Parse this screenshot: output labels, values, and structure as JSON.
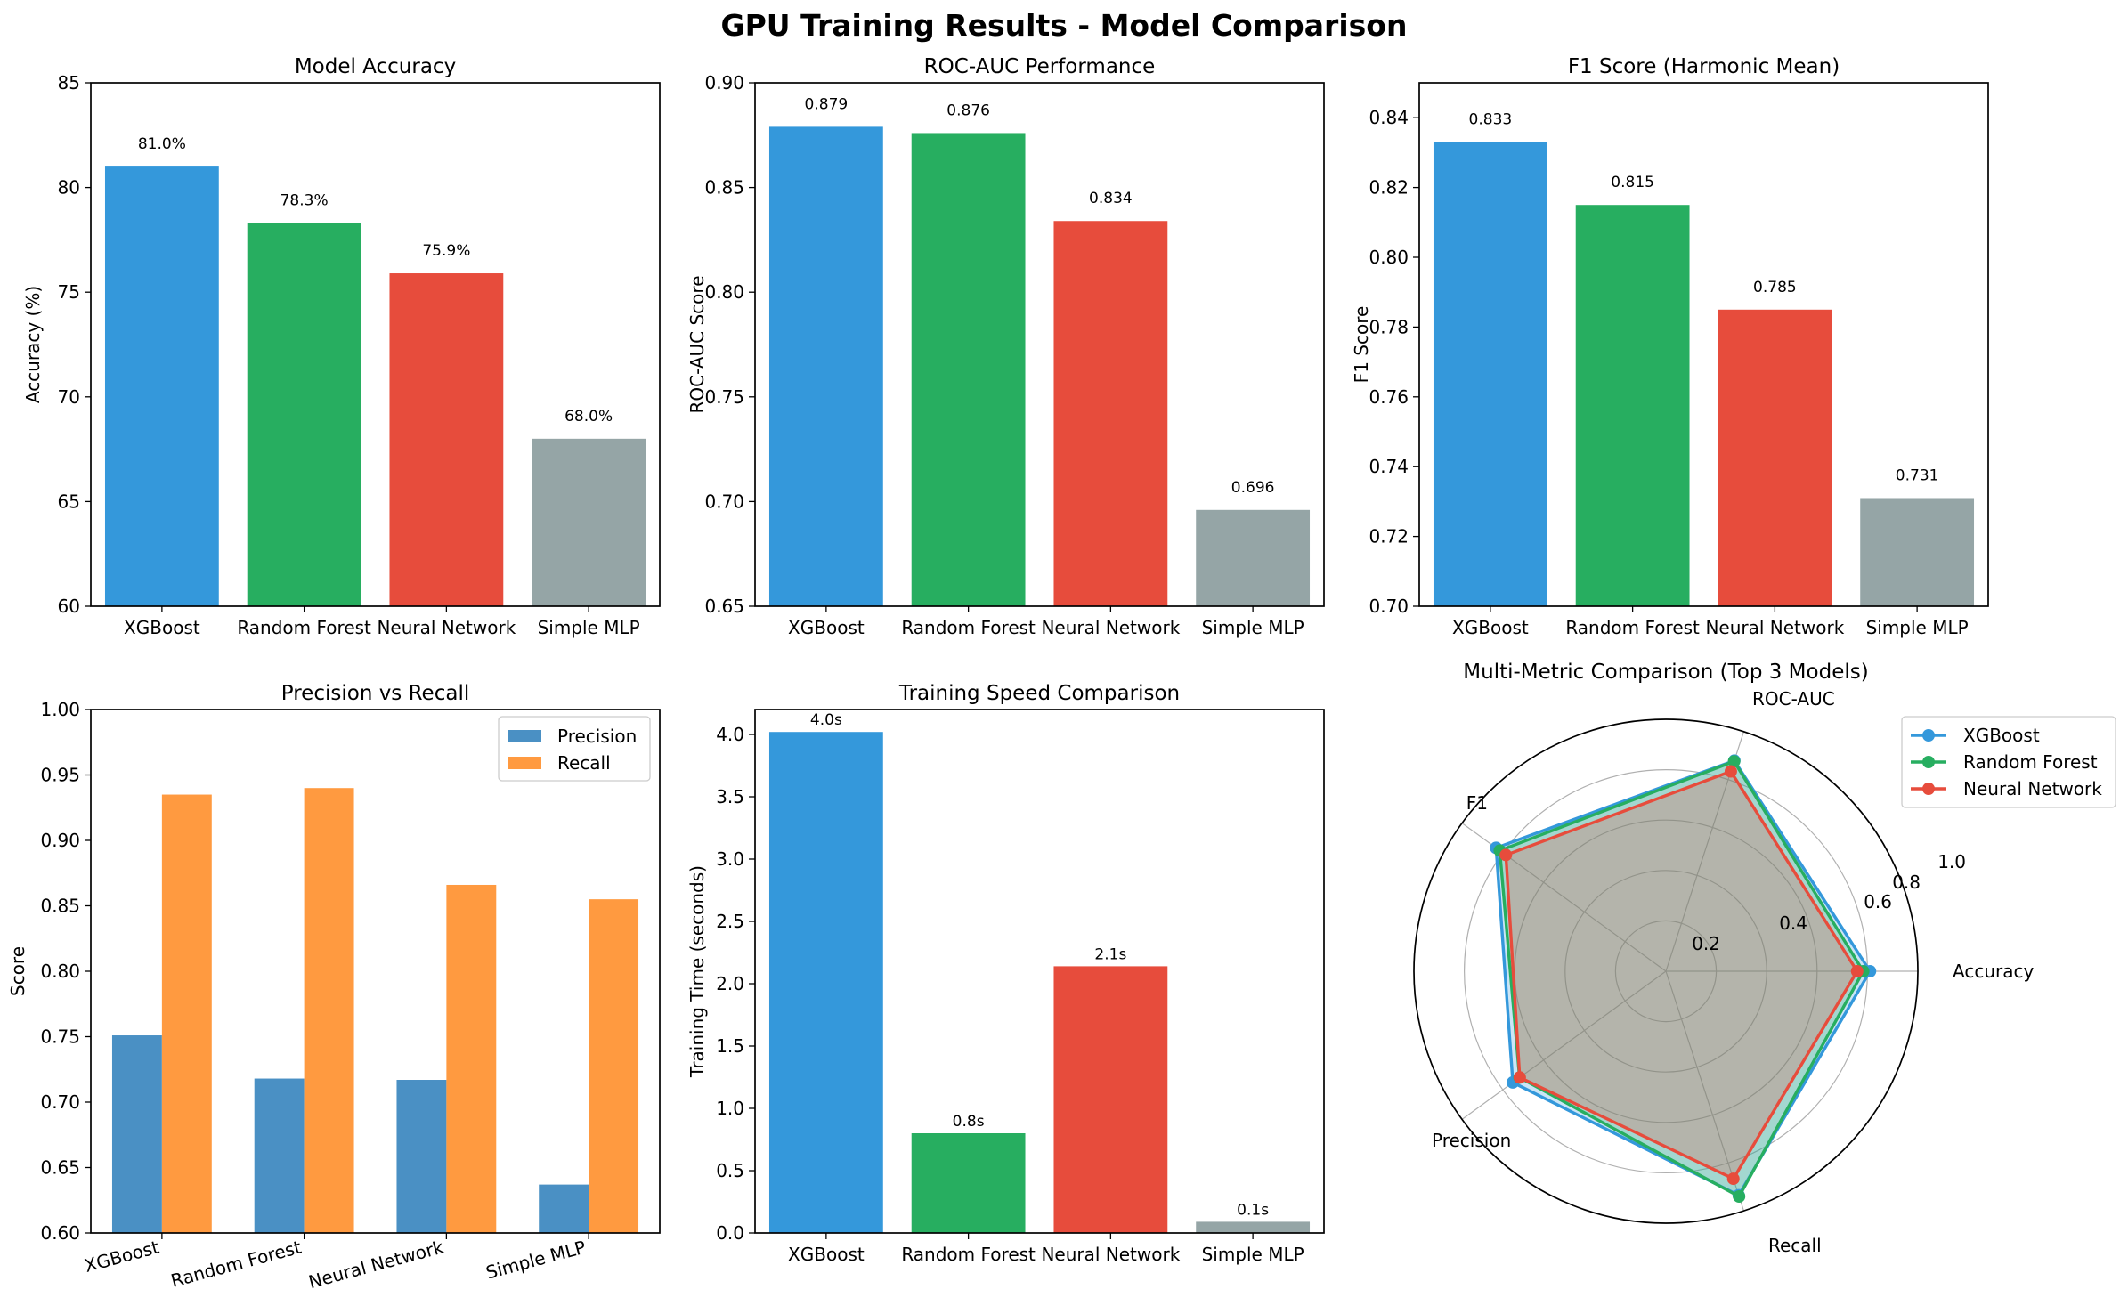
{
  "figure": {
    "title": "GPU Training Results - Model Comparison"
  },
  "chart_data": [
    {
      "id": "accuracy",
      "type": "bar",
      "title": "Model Accuracy",
      "xlabel": "",
      "ylabel": "Accuracy (%)",
      "ylim": [
        60,
        85
      ],
      "yticks": [
        60,
        65,
        70,
        75,
        80,
        85
      ],
      "categories": [
        "XGBoost",
        "Random Forest",
        "Neural Network",
        "Simple MLP"
      ],
      "values": [
        81.0,
        78.3,
        75.9,
        68.0
      ],
      "data_labels": [
        "81.0%",
        "78.3%",
        "75.9%",
        "68.0%"
      ],
      "colors": [
        "#3498db",
        "#27ae60",
        "#e74c3c",
        "#95a5a6"
      ],
      "grid": false
    },
    {
      "id": "roc_auc",
      "type": "bar",
      "title": "ROC-AUC Performance",
      "xlabel": "",
      "ylabel": "ROC-AUC Score",
      "ylim": [
        0.65,
        0.9
      ],
      "yticks": [
        "0.65",
        "0.70",
        "0.75",
        "0.80",
        "0.85",
        "0.90"
      ],
      "categories": [
        "XGBoost",
        "Random Forest",
        "Neural Network",
        "Simple MLP"
      ],
      "values": [
        0.879,
        0.876,
        0.834,
        0.696
      ],
      "data_labels": [
        "0.879",
        "0.876",
        "0.834",
        "0.696"
      ],
      "colors": [
        "#3498db",
        "#27ae60",
        "#e74c3c",
        "#95a5a6"
      ],
      "grid": false
    },
    {
      "id": "f1",
      "type": "bar",
      "title": "F1 Score (Harmonic Mean)",
      "xlabel": "",
      "ylabel": "F1 Score",
      "ylim": [
        0.7,
        0.85
      ],
      "yticks": [
        "0.70",
        "0.72",
        "0.74",
        "0.76",
        "0.78",
        "0.80",
        "0.82",
        "0.84"
      ],
      "categories": [
        "XGBoost",
        "Random Forest",
        "Neural Network",
        "Simple MLP"
      ],
      "values": [
        0.833,
        0.815,
        0.785,
        0.731
      ],
      "data_labels": [
        "0.833",
        "0.815",
        "0.785",
        "0.731"
      ],
      "colors": [
        "#3498db",
        "#27ae60",
        "#e74c3c",
        "#95a5a6"
      ],
      "grid": false
    },
    {
      "id": "prec_recall",
      "type": "bar",
      "title": "Precision vs Recall",
      "xlabel": "",
      "ylabel": "Score",
      "ylim": [
        0.6,
        1.0
      ],
      "yticks": [
        "0.60",
        "0.65",
        "0.70",
        "0.75",
        "0.80",
        "0.85",
        "0.90",
        "0.95",
        "1.00"
      ],
      "categories": [
        "XGBoost",
        "Random Forest",
        "Neural Network",
        "Simple MLP"
      ],
      "series": [
        {
          "name": "Precision",
          "values": [
            0.751,
            0.718,
            0.717,
            0.637
          ],
          "color": "#4a90c4"
        },
        {
          "name": "Recall",
          "values": [
            0.935,
            0.94,
            0.866,
            0.855
          ],
          "color": "#ff9a40"
        }
      ],
      "legend": "upper right",
      "grid": false
    },
    {
      "id": "speed",
      "type": "bar",
      "title": "Training Speed Comparison",
      "xlabel": "",
      "ylabel": "Training Time (seconds)",
      "ylim": [
        0,
        4.2
      ],
      "yticks": [
        "0.0",
        "0.5",
        "1.0",
        "1.5",
        "2.0",
        "2.5",
        "3.0",
        "3.5",
        "4.0"
      ],
      "categories": [
        "XGBoost",
        "Random Forest",
        "Neural Network",
        "Simple MLP"
      ],
      "values": [
        4.02,
        0.8,
        2.14,
        0.09
      ],
      "data_labels": [
        "4.0s",
        "0.8s",
        "2.1s",
        "0.1s"
      ],
      "colors": [
        "#3498db",
        "#27ae60",
        "#e74c3c",
        "#95a5a6"
      ],
      "grid": false
    },
    {
      "id": "radar",
      "type": "radar",
      "title": "Multi-Metric Comparison (Top 3 Models)",
      "axes": [
        "Accuracy",
        "ROC-AUC",
        "F1",
        "Precision",
        "Recall"
      ],
      "rlim": [
        0,
        1.0
      ],
      "rticks": [
        "0.2",
        "0.4",
        "0.6",
        "0.8",
        "1.0"
      ],
      "series": [
        {
          "name": "XGBoost",
          "values": [
            0.81,
            0.879,
            0.833,
            0.751,
            0.935
          ],
          "color": "#3498db"
        },
        {
          "name": "Random Forest",
          "values": [
            0.783,
            0.876,
            0.815,
            0.718,
            0.94
          ],
          "color": "#27ae60"
        },
        {
          "name": "Neural Network",
          "values": [
            0.759,
            0.834,
            0.785,
            0.717,
            0.866
          ],
          "color": "#e74c3c"
        }
      ],
      "legend": "upper right",
      "grid": true
    }
  ]
}
